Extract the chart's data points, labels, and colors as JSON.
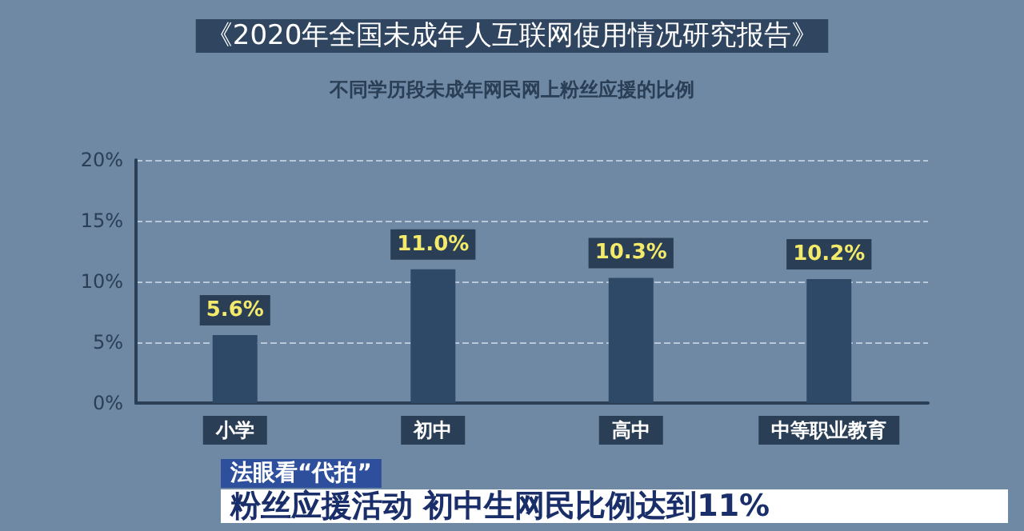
{
  "chart_data": {
    "type": "bar",
    "title": "《2020年全国未成年人互联网使用情况研究报告》",
    "subtitle": "不同学历段未成年网民网上粉丝应援的比例",
    "categories": [
      "小学",
      "初中",
      "高中",
      "中等职业教育"
    ],
    "values": [
      5.6,
      11.0,
      10.3,
      10.2
    ],
    "value_labels": [
      "5.6%",
      "11.0%",
      "10.3%",
      "10.2%"
    ],
    "color": "#2e4868",
    "ylim": [
      0,
      20
    ],
    "yticks": [
      {
        "value": 0,
        "label": "0%"
      },
      {
        "value": 5,
        "label": "5%"
      },
      {
        "value": 10,
        "label": "10%"
      },
      {
        "value": 15,
        "label": "15%"
      },
      {
        "value": 20,
        "label": "20%"
      }
    ],
    "grid": "y",
    "annotations": [
      "法眼看“代拍”",
      "粉丝应援活动 初中生网民比例达到11%"
    ]
  }
}
